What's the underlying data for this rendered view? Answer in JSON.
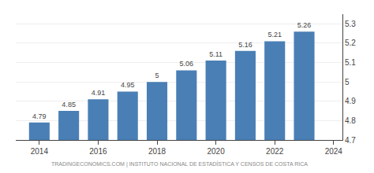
{
  "chart_data": {
    "type": "bar",
    "x": [
      2014,
      2015,
      2016,
      2017,
      2018,
      2019,
      2020,
      2021,
      2022,
      2023
    ],
    "values": [
      4.79,
      4.85,
      4.91,
      4.95,
      5.0,
      5.06,
      5.11,
      5.16,
      5.21,
      5.26
    ],
    "color": "#4a7fb5",
    "xlim": [
      2013.2,
      2024.3
    ],
    "xticks": [
      2014,
      2016,
      2018,
      2020,
      2022,
      2024
    ],
    "ylim": [
      4.7,
      5.35
    ],
    "yticks": [
      4.7,
      4.8,
      4.9,
      5,
      5.1,
      5.2,
      5.3
    ],
    "grid": true,
    "data_labels": true,
    "annotations": [
      "TRADINGECONOMICS.COM | INSTITUTO NACIONAL DE ESTADÍSTICA Y CENSOS DE COSTA RICA"
    ]
  }
}
